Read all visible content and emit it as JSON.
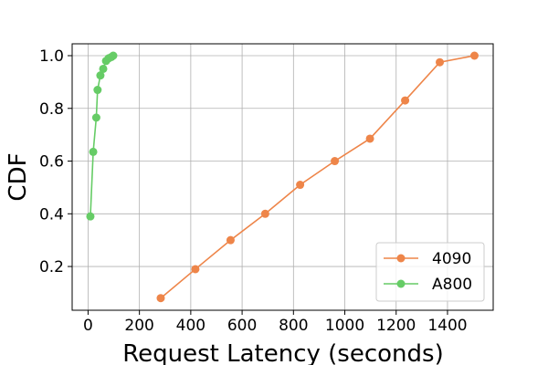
{
  "chart_data": {
    "type": "line",
    "xlabel": "Request Latency (seconds)",
    "ylabel": "CDF",
    "xlim": [
      -62,
      1578
    ],
    "ylim": [
      0.034,
      1.045
    ],
    "xticks": [
      0,
      200,
      400,
      600,
      800,
      1000,
      1200,
      1400
    ],
    "yticks": [
      0.2,
      0.4,
      0.6,
      0.8,
      {
        "value": 1,
        "label": "1.0"
      }
    ],
    "grid": true,
    "legend": "lower right",
    "series": [
      {
        "name": "4090",
        "color": "#ee8549",
        "x": [
          283,
          418,
          555,
          690,
          826,
          961,
          1098,
          1235,
          1370,
          1505
        ],
        "values": [
          0.08,
          0.19,
          0.3,
          0.4,
          0.51,
          0.6,
          0.685,
          0.83,
          0.975,
          1.0
        ]
      },
      {
        "name": "A800",
        "color": "#66cc66",
        "x": [
          9,
          20,
          32,
          37,
          48,
          59,
          70,
          80,
          91,
          98
        ],
        "values": [
          0.39,
          0.635,
          0.765,
          0.87,
          0.925,
          0.95,
          0.98,
          0.99,
          0.995,
          1.0
        ]
      }
    ]
  }
}
